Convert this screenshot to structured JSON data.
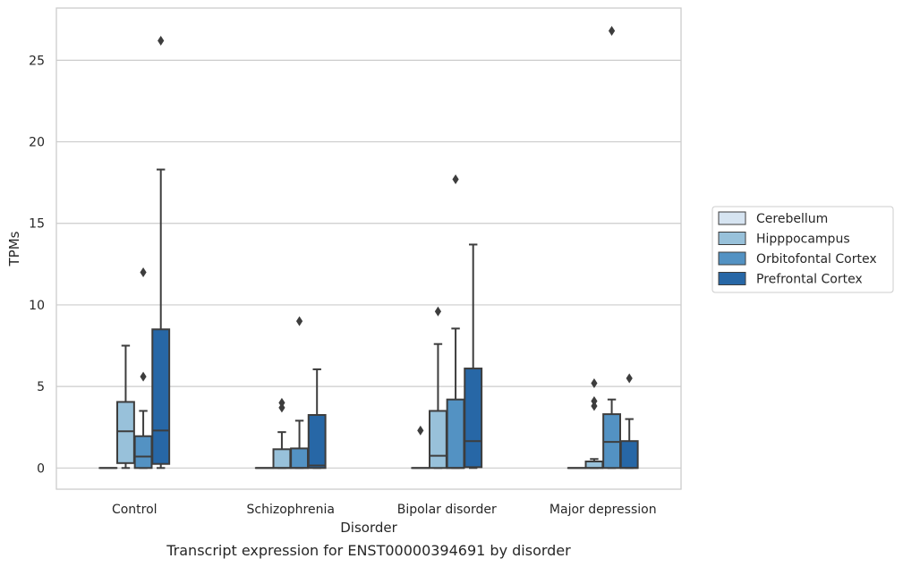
{
  "caption": "Transcript expression for ENST00000394691 by disorder",
  "chart_data": {
    "type": "boxplot",
    "xlabel": "Disorder",
    "ylabel": "TPMs",
    "ylim": [
      -1.3,
      28.2
    ],
    "yticks": [
      0,
      5,
      10,
      15,
      20,
      25
    ],
    "grid": "horizontal",
    "legend_position": "right",
    "categories": [
      "Control",
      "Schizophrenia",
      "Bipolar disorder",
      "Major depression"
    ],
    "series": [
      {
        "name": "Cerebellum",
        "color": "#d6e4f1",
        "boxes": [
          {
            "q1": 0,
            "median": 0,
            "q3": 0,
            "whisker_low": 0,
            "whisker_high": 0,
            "outliers": []
          },
          {
            "q1": 0,
            "median": 0,
            "q3": 0,
            "whisker_low": 0,
            "whisker_high": 0,
            "outliers": []
          },
          {
            "q1": 0,
            "median": 0,
            "q3": 0,
            "whisker_low": 0,
            "whisker_high": 0,
            "outliers": [
              2.3
            ]
          },
          {
            "q1": 0,
            "median": 0,
            "q3": 0,
            "whisker_low": 0,
            "whisker_high": 0,
            "outliers": []
          }
        ]
      },
      {
        "name": "Hipppocampus",
        "color": "#98c1da",
        "boxes": [
          {
            "q1": 0.3,
            "median": 2.25,
            "q3": 4.05,
            "whisker_low": 0,
            "whisker_high": 7.5,
            "outliers": []
          },
          {
            "q1": 0,
            "median": 0,
            "q3": 1.15,
            "whisker_low": 0,
            "whisker_high": 2.2,
            "outliers": [
              3.7,
              4.0
            ]
          },
          {
            "q1": 0,
            "median": 0.75,
            "q3": 3.5,
            "whisker_low": 0,
            "whisker_high": 7.6,
            "outliers": [
              9.6
            ]
          },
          {
            "q1": 0,
            "median": 0,
            "q3": 0.4,
            "whisker_low": 0,
            "whisker_high": 0.55,
            "outliers": [
              3.8,
              4.1,
              5.2
            ]
          }
        ]
      },
      {
        "name": "Orbitofontal Cortex",
        "color": "#5392c3",
        "boxes": [
          {
            "q1": 0,
            "median": 0.7,
            "q3": 1.95,
            "whisker_low": 0,
            "whisker_high": 3.5,
            "outliers": [
              5.6,
              12.0
            ]
          },
          {
            "q1": 0,
            "median": 0,
            "q3": 1.2,
            "whisker_low": 0,
            "whisker_high": 2.9,
            "outliers": [
              9.0
            ]
          },
          {
            "q1": 0,
            "median": 0,
            "q3": 4.2,
            "whisker_low": 0,
            "whisker_high": 8.55,
            "outliers": [
              17.7
            ]
          },
          {
            "q1": 0,
            "median": 1.6,
            "q3": 3.3,
            "whisker_low": 0,
            "whisker_high": 4.2,
            "outliers": [
              26.8
            ]
          }
        ]
      },
      {
        "name": "Prefrontal Cortex",
        "color": "#2767a6",
        "boxes": [
          {
            "q1": 0.25,
            "median": 2.3,
            "q3": 8.5,
            "whisker_low": 0,
            "whisker_high": 18.3,
            "outliers": [
              26.2
            ]
          },
          {
            "q1": 0,
            "median": 0.15,
            "q3": 3.25,
            "whisker_low": 0,
            "whisker_high": 6.05,
            "outliers": []
          },
          {
            "q1": 0.05,
            "median": 1.65,
            "q3": 6.1,
            "whisker_low": 0,
            "whisker_high": 13.7,
            "outliers": []
          },
          {
            "q1": 0,
            "median": 0,
            "q3": 1.65,
            "whisker_low": 0,
            "whisker_high": 3.0,
            "outliers": [
              5.5
            ]
          }
        ]
      }
    ]
  }
}
